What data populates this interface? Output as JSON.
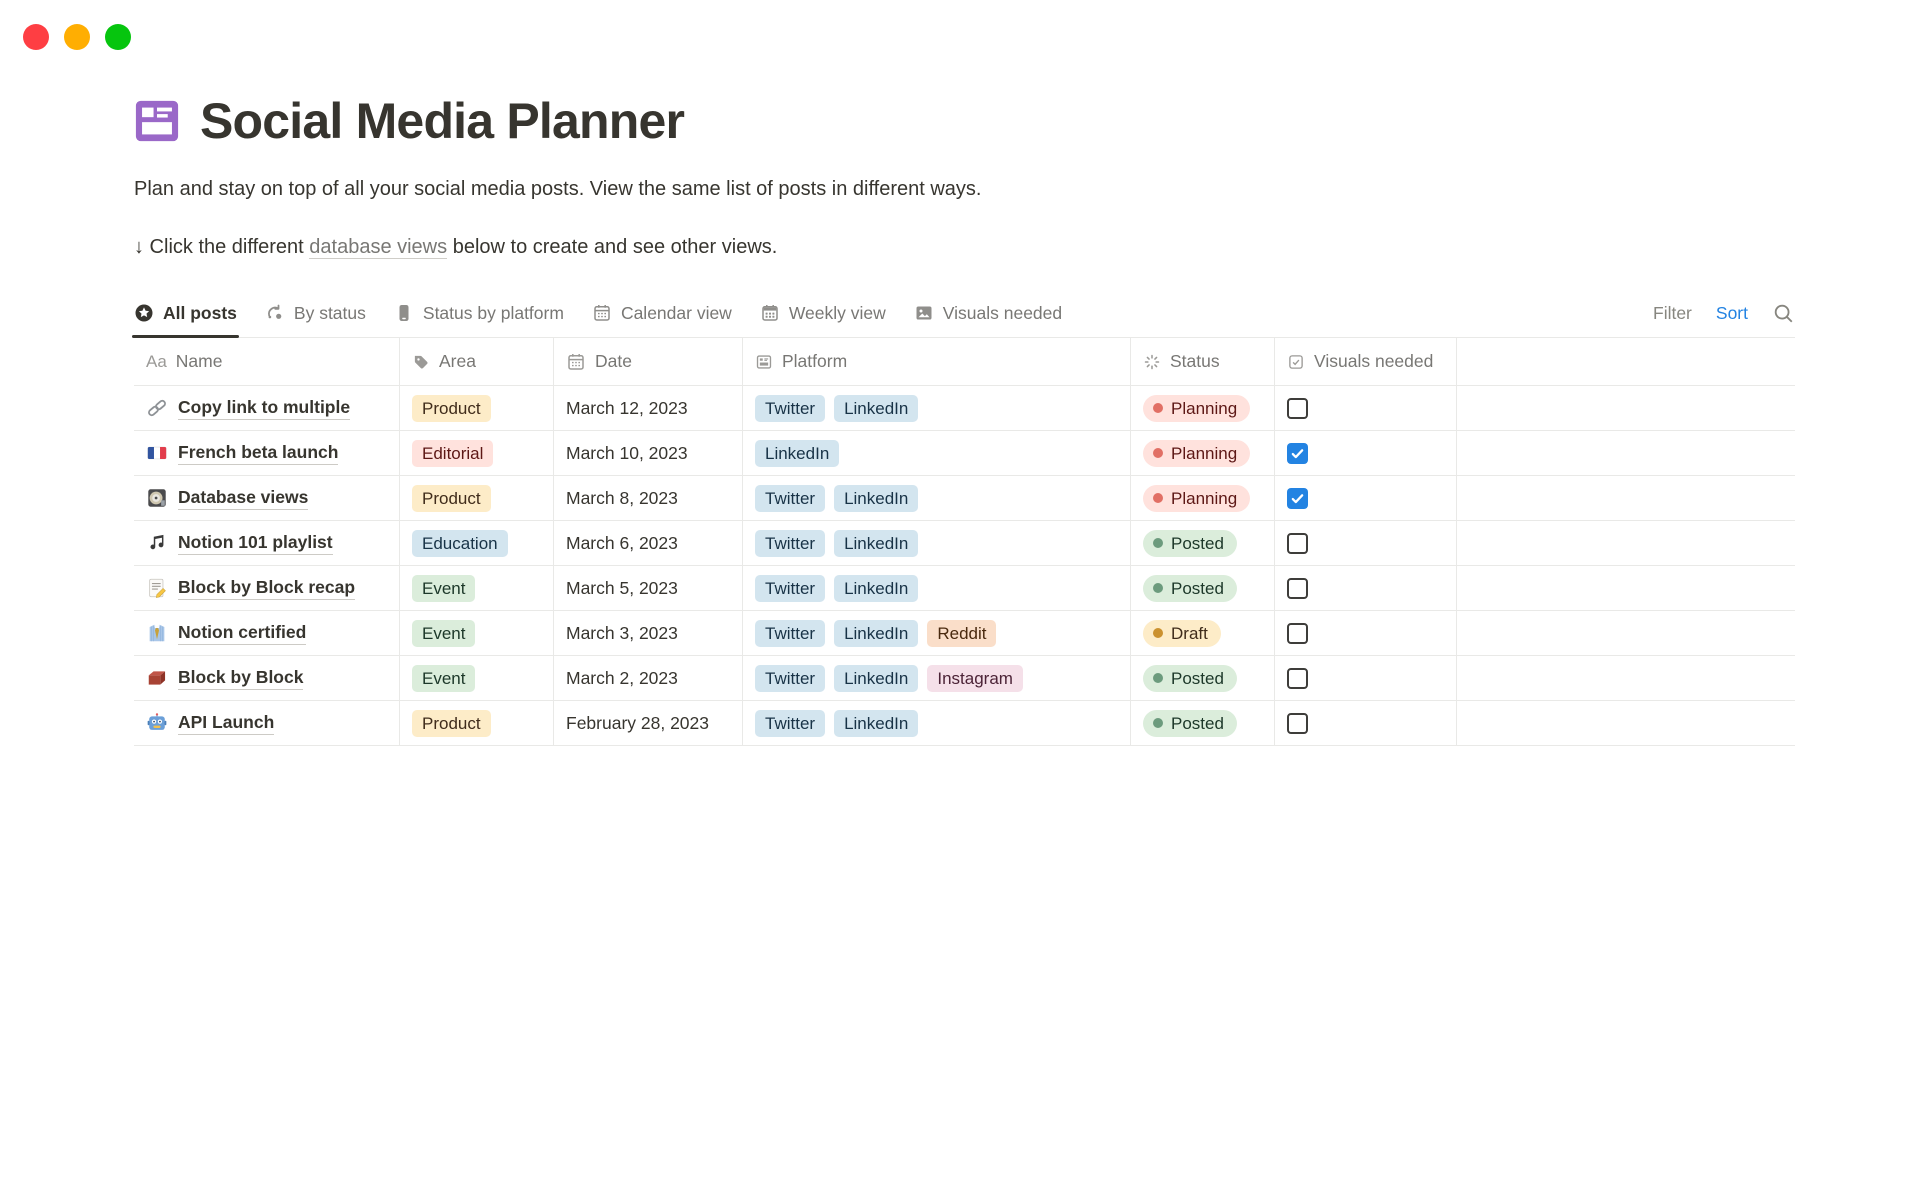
{
  "window": {
    "controls": [
      {
        "name": "close",
        "color": "#FE3E43"
      },
      {
        "name": "minimize",
        "color": "#FFAE02"
      },
      {
        "name": "zoom",
        "color": "#06C50E"
      }
    ]
  },
  "header": {
    "title": "Social Media Planner",
    "title_icon": "gallery-database-icon",
    "title_icon_color": "#9A68C8",
    "description": "Plan and stay on top of all your social media posts. View the same list of posts in different ways.",
    "note_prefix": "↓ Click the different ",
    "note_link": "database views",
    "note_suffix": " below to create and see other views."
  },
  "view_tabs": [
    {
      "label": "All posts",
      "icon": "star-circle-icon",
      "active": true
    },
    {
      "label": "By status",
      "icon": "group-by-status-icon",
      "active": false
    },
    {
      "label": "Status by platform",
      "icon": "phone-icon",
      "active": false
    },
    {
      "label": "Calendar view",
      "icon": "calendar-icon",
      "active": false
    },
    {
      "label": "Weekly view",
      "icon": "weekly-calendar-icon",
      "active": false
    },
    {
      "label": "Visuals needed",
      "icon": "image-icon",
      "active": false
    }
  ],
  "toolbar": {
    "filter_label": "Filter",
    "sort_label": "Sort",
    "search_icon": "search-icon",
    "accent_color": "#2383E2"
  },
  "table": {
    "columns": [
      {
        "label": "Name",
        "icon": "text-icon"
      },
      {
        "label": "Area",
        "icon": "tag-icon"
      },
      {
        "label": "Date",
        "icon": "calendar-icon"
      },
      {
        "label": "Platform",
        "icon": "select-icon"
      },
      {
        "label": "Status",
        "icon": "status-spinner-icon"
      },
      {
        "label": "Visuals needed",
        "icon": "checkbox-icon"
      }
    ],
    "rows": [
      {
        "icon": "link-emoji",
        "name": "Copy link to multiple",
        "area": {
          "label": "Product",
          "color": "yellow"
        },
        "date": "March 12, 2023",
        "platforms": [
          {
            "label": "Twitter",
            "color": "blue"
          },
          {
            "label": "LinkedIn",
            "color": "blue"
          }
        ],
        "status": {
          "label": "Planning",
          "color": "red"
        },
        "visuals_needed": false
      },
      {
        "icon": "france-flag-emoji",
        "name": "French beta launch",
        "area": {
          "label": "Editorial",
          "color": "red"
        },
        "date": "March 10, 2023",
        "platforms": [
          {
            "label": "LinkedIn",
            "color": "blue"
          }
        ],
        "status": {
          "label": "Planning",
          "color": "red"
        },
        "visuals_needed": true
      },
      {
        "icon": "minidisc-emoji",
        "name": "Database views",
        "area": {
          "label": "Product",
          "color": "yellow"
        },
        "date": "March 8, 2023",
        "platforms": [
          {
            "label": "Twitter",
            "color": "blue"
          },
          {
            "label": "LinkedIn",
            "color": "blue"
          }
        ],
        "status": {
          "label": "Planning",
          "color": "red"
        },
        "visuals_needed": true
      },
      {
        "icon": "music-note-emoji",
        "name": "Notion 101 playlist",
        "area": {
          "label": "Education",
          "color": "blue"
        },
        "date": "March 6, 2023",
        "platforms": [
          {
            "label": "Twitter",
            "color": "blue"
          },
          {
            "label": "LinkedIn",
            "color": "blue"
          }
        ],
        "status": {
          "label": "Posted",
          "color": "green"
        },
        "visuals_needed": false
      },
      {
        "icon": "memo-emoji",
        "name": "Block by Block recap",
        "area": {
          "label": "Event",
          "color": "green"
        },
        "date": "March 5, 2023",
        "platforms": [
          {
            "label": "Twitter",
            "color": "blue"
          },
          {
            "label": "LinkedIn",
            "color": "blue"
          }
        ],
        "status": {
          "label": "Posted",
          "color": "green"
        },
        "visuals_needed": false
      },
      {
        "icon": "necktie-emoji",
        "name": "Notion certified",
        "area": {
          "label": "Event",
          "color": "green"
        },
        "date": "March 3, 2023",
        "platforms": [
          {
            "label": "Twitter",
            "color": "blue"
          },
          {
            "label": "LinkedIn",
            "color": "blue"
          },
          {
            "label": "Reddit",
            "color": "orange"
          }
        ],
        "status": {
          "label": "Draft",
          "color": "yellow"
        },
        "visuals_needed": false
      },
      {
        "icon": "brick-emoji",
        "name": "Block by Block",
        "area": {
          "label": "Event",
          "color": "green"
        },
        "date": "March 2, 2023",
        "platforms": [
          {
            "label": "Twitter",
            "color": "blue"
          },
          {
            "label": "LinkedIn",
            "color": "blue"
          },
          {
            "label": "Instagram",
            "color": "pink"
          }
        ],
        "status": {
          "label": "Posted",
          "color": "green"
        },
        "visuals_needed": false
      },
      {
        "icon": "robot-emoji",
        "name": "API Launch",
        "area": {
          "label": "Product",
          "color": "yellow"
        },
        "date": "February 28, 2023",
        "platforms": [
          {
            "label": "Twitter",
            "color": "blue"
          },
          {
            "label": "LinkedIn",
            "color": "blue"
          }
        ],
        "status": {
          "label": "Posted",
          "color": "green"
        },
        "visuals_needed": false
      }
    ]
  },
  "colors": {
    "text": "#37352F",
    "muted_text": "#787774",
    "border": "#E9E9E7",
    "accent_blue": "#2383E2",
    "checkbox_checked": "#2383E2",
    "tag_yellow_bg": "#FDECC8",
    "tag_yellow_text": "#402C1B",
    "tag_red_bg": "#FFE2DD",
    "tag_red_text": "#5D1715",
    "tag_blue_bg": "#D3E5EF",
    "tag_blue_text": "#183347",
    "tag_green_bg": "#DBEDDB",
    "tag_green_text": "#1C3829",
    "tag_orange_bg": "#FADEC9",
    "tag_orange_text": "#49290E",
    "tag_pink_bg": "#F5E0E9",
    "tag_pink_text": "#4C2337",
    "status_dot_red": "#E16F64",
    "status_dot_green": "#6C9B7D",
    "status_dot_yellow": "#CB912F"
  }
}
